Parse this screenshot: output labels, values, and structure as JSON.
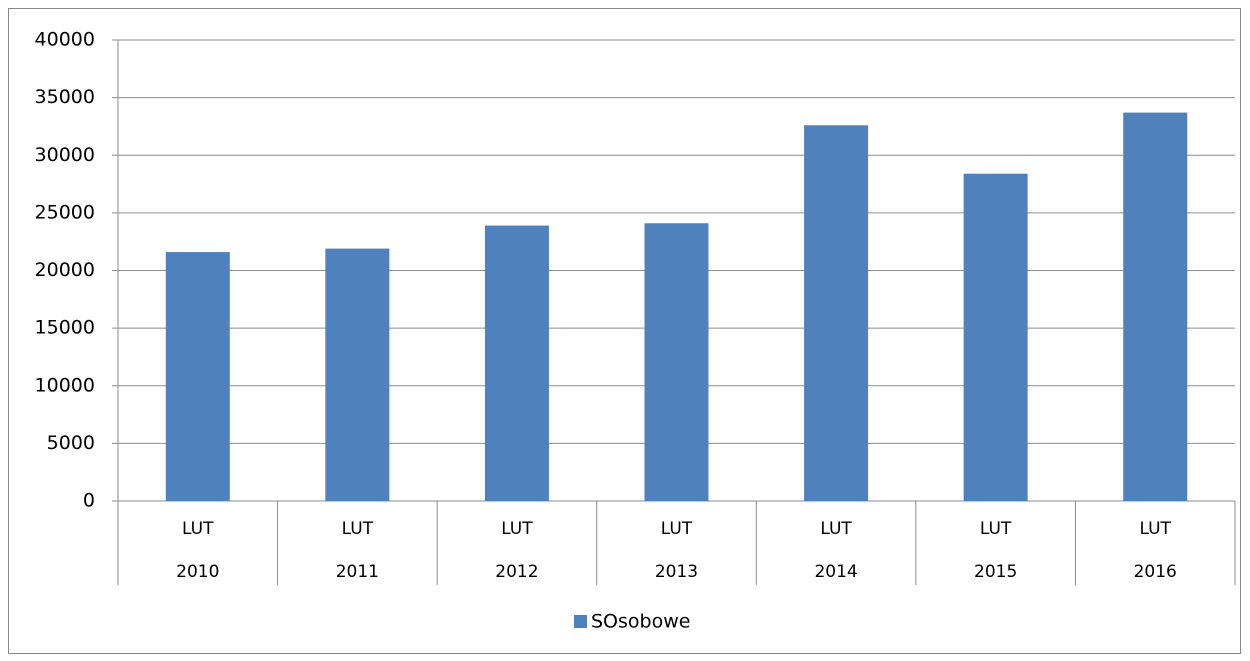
{
  "chart_data": {
    "type": "bar",
    "categories": [
      [
        "LUT",
        "2010"
      ],
      [
        "LUT",
        "2011"
      ],
      [
        "LUT",
        "2012"
      ],
      [
        "LUT",
        "2013"
      ],
      [
        "LUT",
        "2014"
      ],
      [
        "LUT",
        "2015"
      ],
      [
        "LUT",
        "2016"
      ]
    ],
    "series": [
      {
        "name": "SOsobowe",
        "color": "#4f81bd",
        "values": [
          21600,
          21900,
          23900,
          24100,
          32600,
          28400,
          33700
        ]
      }
    ],
    "ylim": [
      0,
      40000
    ],
    "yticks": [
      0,
      5000,
      10000,
      15000,
      20000,
      25000,
      30000,
      35000,
      40000
    ],
    "grid": true,
    "legend": "bottom"
  }
}
